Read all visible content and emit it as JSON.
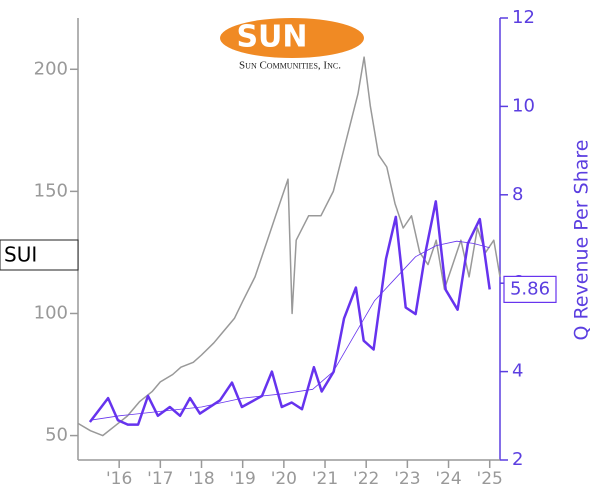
{
  "chart_data": {
    "type": "line",
    "logo": {
      "name": "SUN",
      "subtitle": "Sun Communities, Inc."
    },
    "ticker": "SUI",
    "y2label": "Q Revenue Per Share",
    "xlim": [
      2015,
      2025.25
    ],
    "xticks": [
      {
        "value": 2016,
        "label": "'16"
      },
      {
        "value": 2017,
        "label": "'17"
      },
      {
        "value": 2018,
        "label": "'18"
      },
      {
        "value": 2019,
        "label": "'19"
      },
      {
        "value": 2020,
        "label": "'20"
      },
      {
        "value": 2021,
        "label": "'21"
      },
      {
        "value": 2022,
        "label": "'22"
      },
      {
        "value": 2023,
        "label": "'23"
      },
      {
        "value": 2024,
        "label": "'24"
      },
      {
        "value": 2025,
        "label": "'25"
      }
    ],
    "ylim": [
      40,
      221
    ],
    "yticks": [
      50,
      100,
      150,
      200
    ],
    "y2lim": [
      2,
      12
    ],
    "y2ticks": [
      2,
      4,
      6,
      8,
      10,
      12
    ],
    "series": [
      {
        "color": "#999999",
        "linewidth": 1.5,
        "x": [
          2015.0,
          2015.3,
          2015.6,
          2015.9,
          2016.2,
          2016.5,
          2016.8,
          2017.0,
          2017.3,
          2017.5,
          2017.8,
          2018.0,
          2018.3,
          2018.5,
          2018.8,
          2019.0,
          2019.3,
          2019.6,
          2019.9,
          2020.1,
          2020.2,
          2020.3,
          2020.6,
          2020.9,
          2021.2,
          2021.5,
          2021.8,
          2021.95,
          2022.1,
          2022.3,
          2022.5,
          2022.7,
          2022.9,
          2023.1,
          2023.3,
          2023.5,
          2023.7,
          2023.9,
          2024.1,
          2024.3,
          2024.5,
          2024.7,
          2024.9,
          2025.1,
          2025.25
        ],
        "values": [
          55,
          52,
          50,
          54,
          58,
          64,
          68,
          72,
          75,
          78,
          80,
          83,
          88,
          92,
          98,
          105,
          115,
          130,
          145,
          155,
          100,
          130,
          140,
          140,
          150,
          170,
          190,
          205,
          185,
          165,
          160,
          145,
          135,
          140,
          125,
          120,
          130,
          110,
          120,
          130,
          115,
          135,
          125,
          130,
          115
        ]
      },
      {
        "color": "#6633ee",
        "linewidth": 2.5,
        "axis": "y2",
        "x": [
          2015.29,
          2015.73,
          2015.97,
          2016.21,
          2016.46,
          2016.7,
          2016.94,
          2017.23,
          2017.48,
          2017.72,
          2017.96,
          2018.45,
          2018.74,
          2018.98,
          2019.47,
          2019.71,
          2019.95,
          2020.19,
          2020.44,
          2020.73,
          2020.92,
          2021.21,
          2021.46,
          2021.75,
          2021.94,
          2022.18,
          2022.48,
          2022.72,
          2022.96,
          2023.2,
          2023.45,
          2023.69,
          2023.93,
          2024.22,
          2024.47,
          2024.76,
          2025.0
        ],
        "values": [
          2.86,
          3.4,
          2.9,
          2.8,
          2.8,
          3.45,
          3.0,
          3.2,
          3.0,
          3.4,
          3.05,
          3.35,
          3.75,
          3.2,
          3.45,
          4.0,
          3.2,
          3.3,
          3.15,
          4.1,
          3.55,
          4.0,
          5.2,
          5.9,
          4.7,
          4.5,
          6.55,
          7.5,
          5.45,
          5.3,
          6.75,
          7.85,
          5.85,
          5.4,
          6.9,
          7.45,
          5.86
        ]
      },
      {
        "color": "#6633ee",
        "linewidth": 0.8,
        "axis": "y2",
        "x": [
          2015.3,
          2016.0,
          2017.0,
          2018.0,
          2019.0,
          2020.0,
          2020.7,
          2021.2,
          2021.7,
          2022.2,
          2022.7,
          2023.2,
          2023.7,
          2024.2,
          2024.6,
          2025.0
        ],
        "values": [
          2.9,
          3.0,
          3.1,
          3.2,
          3.4,
          3.5,
          3.6,
          4.0,
          4.8,
          5.6,
          6.1,
          6.6,
          6.85,
          6.95,
          6.9,
          6.8
        ]
      }
    ]
  }
}
